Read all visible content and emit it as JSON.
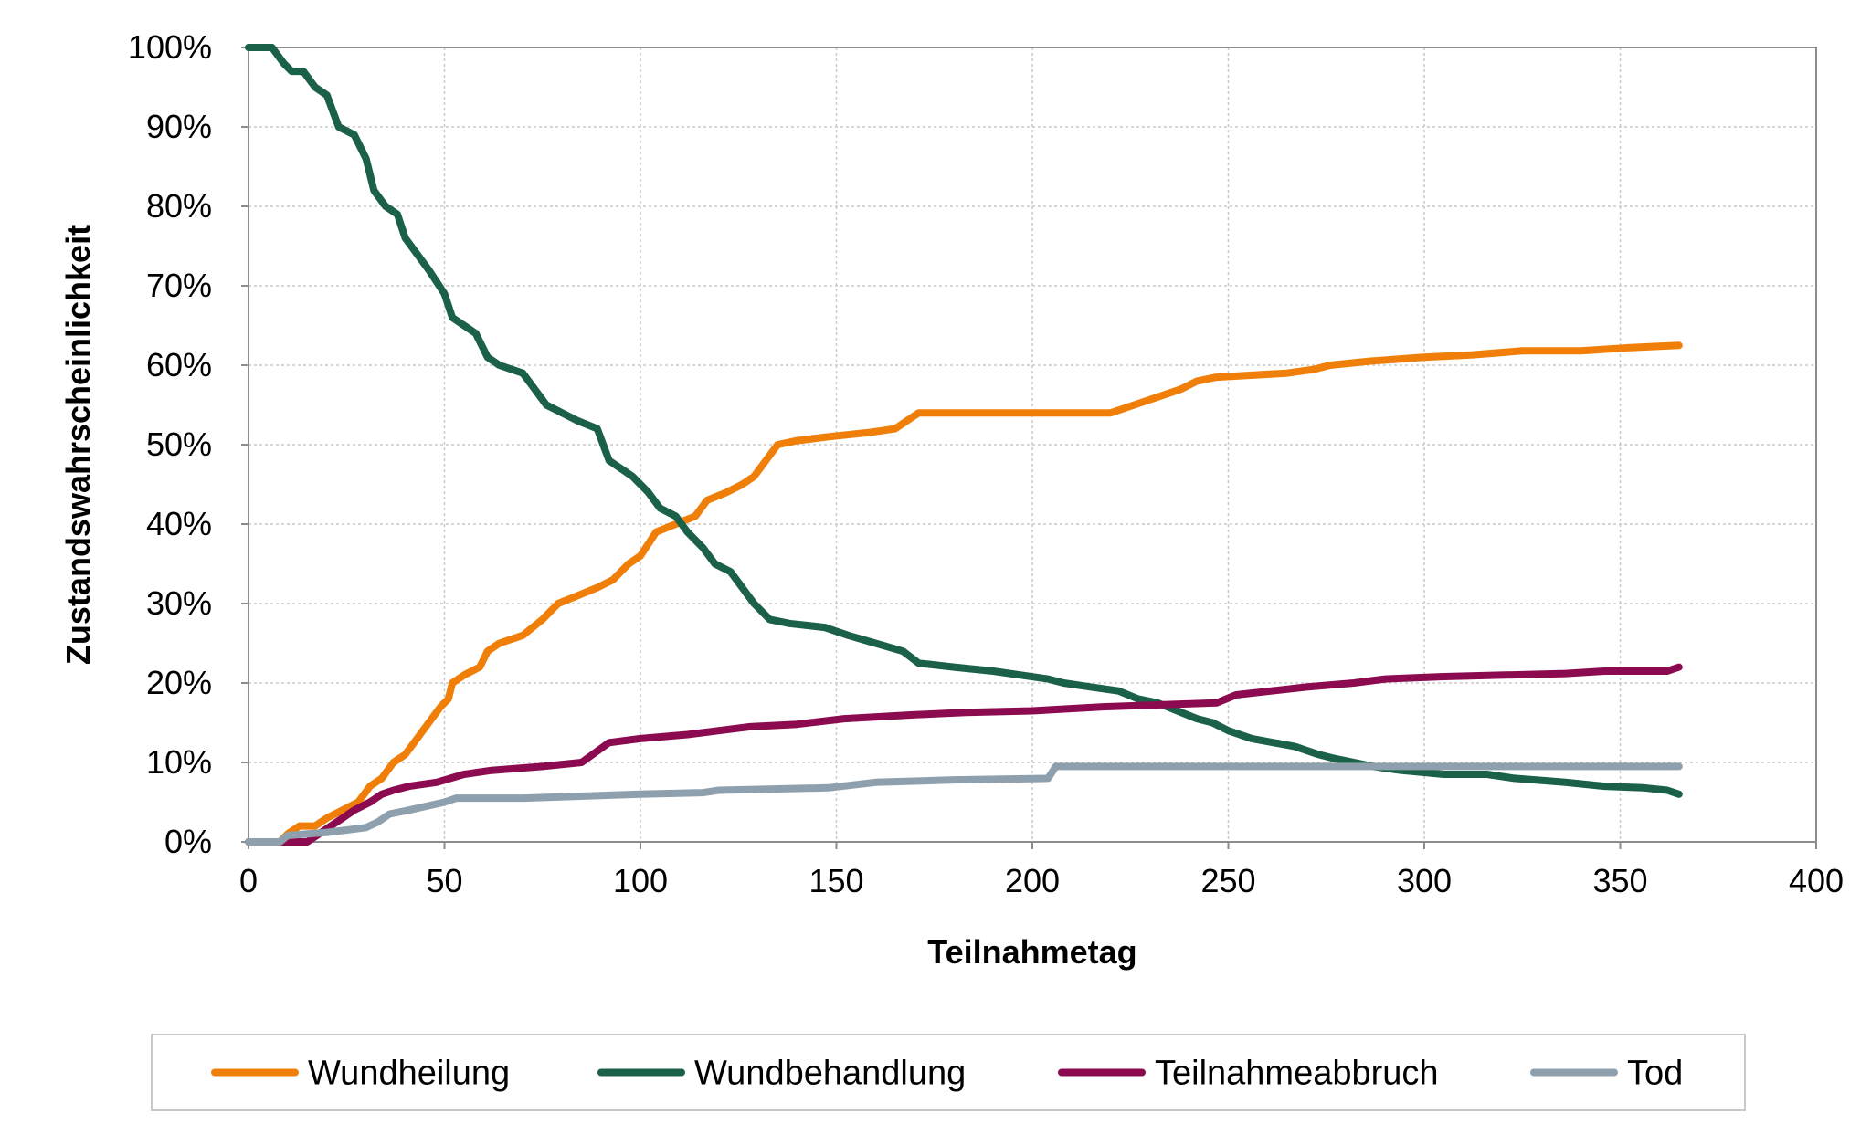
{
  "chart_data": {
    "type": "line",
    "xlabel": "Teilnahmetag",
    "ylabel": "Zustandswahrscheinlichkeit",
    "xlim": [
      0,
      400
    ],
    "ylim": [
      0,
      1
    ],
    "x_ticks": [
      {
        "value": 0,
        "label": "0"
      },
      {
        "value": 50,
        "label": "50"
      },
      {
        "value": 100,
        "label": "100"
      },
      {
        "value": 150,
        "label": "150"
      },
      {
        "value": 200,
        "label": "200"
      },
      {
        "value": 250,
        "label": "250"
      },
      {
        "value": 300,
        "label": "300"
      },
      {
        "value": 350,
        "label": "350"
      },
      {
        "value": 400,
        "label": "400"
      }
    ],
    "y_ticks": [
      {
        "value": 0.0,
        "label": "0%"
      },
      {
        "value": 0.1,
        "label": "10%"
      },
      {
        "value": 0.2,
        "label": "20%"
      },
      {
        "value": 0.3,
        "label": "30%"
      },
      {
        "value": 0.4,
        "label": "40%"
      },
      {
        "value": 0.5,
        "label": "50%"
      },
      {
        "value": 0.6,
        "label": "60%"
      },
      {
        "value": 0.7,
        "label": "70%"
      },
      {
        "value": 0.8,
        "label": "80%"
      },
      {
        "value": 0.9,
        "label": "90%"
      },
      {
        "value": 1.0,
        "label": "100%"
      }
    ],
    "grid": "dashed, both axes",
    "legend_position": "bottom",
    "series": [
      {
        "name": "Wundheilung",
        "color": "#f07f09",
        "points": [
          [
            0,
            0
          ],
          [
            8,
            0
          ],
          [
            10,
            0.01
          ],
          [
            13,
            0.02
          ],
          [
            17,
            0.02
          ],
          [
            20,
            0.03
          ],
          [
            24,
            0.04
          ],
          [
            28,
            0.05
          ],
          [
            31,
            0.07
          ],
          [
            34,
            0.08
          ],
          [
            37,
            0.1
          ],
          [
            40,
            0.11
          ],
          [
            43,
            0.13
          ],
          [
            46,
            0.15
          ],
          [
            49,
            0.17
          ],
          [
            51,
            0.18
          ],
          [
            52,
            0.2
          ],
          [
            55,
            0.21
          ],
          [
            59,
            0.22
          ],
          [
            61,
            0.24
          ],
          [
            64,
            0.25
          ],
          [
            70,
            0.26
          ],
          [
            75,
            0.28
          ],
          [
            79,
            0.3
          ],
          [
            84,
            0.31
          ],
          [
            89,
            0.32
          ],
          [
            93,
            0.33
          ],
          [
            97,
            0.35
          ],
          [
            100,
            0.36
          ],
          [
            104,
            0.39
          ],
          [
            109,
            0.4
          ],
          [
            114,
            0.41
          ],
          [
            117,
            0.43
          ],
          [
            122,
            0.44
          ],
          [
            126,
            0.45
          ],
          [
            129,
            0.46
          ],
          [
            132,
            0.48
          ],
          [
            135,
            0.5
          ],
          [
            140,
            0.505
          ],
          [
            148,
            0.51
          ],
          [
            158,
            0.515
          ],
          [
            165,
            0.52
          ],
          [
            171,
            0.54
          ],
          [
            180,
            0.54
          ],
          [
            200,
            0.54
          ],
          [
            220,
            0.54
          ],
          [
            226,
            0.55
          ],
          [
            232,
            0.56
          ],
          [
            238,
            0.57
          ],
          [
            242,
            0.58
          ],
          [
            247,
            0.585
          ],
          [
            265,
            0.59
          ],
          [
            272,
            0.595
          ],
          [
            276,
            0.6
          ],
          [
            286,
            0.605
          ],
          [
            300,
            0.61
          ],
          [
            312,
            0.613
          ],
          [
            325,
            0.618
          ],
          [
            340,
            0.618
          ],
          [
            352,
            0.622
          ],
          [
            365,
            0.625
          ]
        ]
      },
      {
        "name": "Wundbehandlung",
        "color": "#1b6049",
        "points": [
          [
            0,
            1
          ],
          [
            6,
            1
          ],
          [
            9,
            0.98
          ],
          [
            11,
            0.97
          ],
          [
            14,
            0.97
          ],
          [
            17,
            0.95
          ],
          [
            20,
            0.94
          ],
          [
            23,
            0.9
          ],
          [
            27,
            0.89
          ],
          [
            30,
            0.86
          ],
          [
            32,
            0.82
          ],
          [
            35,
            0.8
          ],
          [
            38,
            0.79
          ],
          [
            40,
            0.76
          ],
          [
            43,
            0.74
          ],
          [
            46,
            0.72
          ],
          [
            50,
            0.69
          ],
          [
            52,
            0.66
          ],
          [
            55,
            0.65
          ],
          [
            58,
            0.64
          ],
          [
            61,
            0.61
          ],
          [
            64,
            0.6
          ],
          [
            70,
            0.59
          ],
          [
            73,
            0.57
          ],
          [
            76,
            0.55
          ],
          [
            80,
            0.54
          ],
          [
            84,
            0.53
          ],
          [
            89,
            0.52
          ],
          [
            92,
            0.48
          ],
          [
            95,
            0.47
          ],
          [
            98,
            0.46
          ],
          [
            102,
            0.44
          ],
          [
            105,
            0.42
          ],
          [
            109,
            0.41
          ],
          [
            112,
            0.39
          ],
          [
            116,
            0.37
          ],
          [
            119,
            0.35
          ],
          [
            123,
            0.34
          ],
          [
            126,
            0.32
          ],
          [
            129,
            0.3
          ],
          [
            133,
            0.28
          ],
          [
            138,
            0.275
          ],
          [
            147,
            0.27
          ],
          [
            153,
            0.26
          ],
          [
            160,
            0.25
          ],
          [
            167,
            0.24
          ],
          [
            171,
            0.225
          ],
          [
            180,
            0.22
          ],
          [
            190,
            0.215
          ],
          [
            204,
            0.205
          ],
          [
            208,
            0.2
          ],
          [
            215,
            0.195
          ],
          [
            222,
            0.19
          ],
          [
            227,
            0.18
          ],
          [
            232,
            0.175
          ],
          [
            237,
            0.165
          ],
          [
            242,
            0.155
          ],
          [
            246,
            0.15
          ],
          [
            250,
            0.14
          ],
          [
            256,
            0.13
          ],
          [
            267,
            0.12
          ],
          [
            273,
            0.11
          ],
          [
            277,
            0.105
          ],
          [
            287,
            0.095
          ],
          [
            294,
            0.09
          ],
          [
            305,
            0.085
          ],
          [
            316,
            0.085
          ],
          [
            323,
            0.08
          ],
          [
            336,
            0.075
          ],
          [
            346,
            0.07
          ],
          [
            356,
            0.068
          ],
          [
            362,
            0.065
          ],
          [
            365,
            0.06
          ]
        ]
      },
      {
        "name": "Teilnahmeabbruch",
        "color": "#8c0a4f",
        "points": [
          [
            0,
            0
          ],
          [
            15,
            0
          ],
          [
            18,
            0.01
          ],
          [
            21,
            0.02
          ],
          [
            24,
            0.03
          ],
          [
            27,
            0.04
          ],
          [
            31,
            0.05
          ],
          [
            34,
            0.06
          ],
          [
            37,
            0.065
          ],
          [
            41,
            0.07
          ],
          [
            48,
            0.075
          ],
          [
            55,
            0.085
          ],
          [
            62,
            0.09
          ],
          [
            75,
            0.095
          ],
          [
            85,
            0.1
          ],
          [
            92,
            0.125
          ],
          [
            100,
            0.13
          ],
          [
            112,
            0.135
          ],
          [
            120,
            0.14
          ],
          [
            128,
            0.145
          ],
          [
            140,
            0.148
          ],
          [
            152,
            0.155
          ],
          [
            170,
            0.16
          ],
          [
            183,
            0.163
          ],
          [
            200,
            0.165
          ],
          [
            218,
            0.17
          ],
          [
            247,
            0.175
          ],
          [
            252,
            0.185
          ],
          [
            270,
            0.195
          ],
          [
            282,
            0.2
          ],
          [
            290,
            0.205
          ],
          [
            305,
            0.208
          ],
          [
            336,
            0.212
          ],
          [
            346,
            0.215
          ],
          [
            362,
            0.215
          ],
          [
            365,
            0.22
          ]
        ]
      },
      {
        "name": "Tod",
        "color": "#8ea0ad",
        "points": [
          [
            0,
            0
          ],
          [
            8,
            0
          ],
          [
            10,
            0.008
          ],
          [
            20,
            0.012
          ],
          [
            25,
            0.015
          ],
          [
            30,
            0.018
          ],
          [
            33,
            0.025
          ],
          [
            36,
            0.035
          ],
          [
            41,
            0.04
          ],
          [
            50,
            0.05
          ],
          [
            53,
            0.055
          ],
          [
            70,
            0.055
          ],
          [
            88,
            0.058
          ],
          [
            100,
            0.06
          ],
          [
            116,
            0.062
          ],
          [
            120,
            0.065
          ],
          [
            148,
            0.068
          ],
          [
            160,
            0.075
          ],
          [
            180,
            0.078
          ],
          [
            204,
            0.08
          ],
          [
            206,
            0.095
          ],
          [
            250,
            0.095
          ],
          [
            300,
            0.095
          ],
          [
            365,
            0.095
          ]
        ]
      }
    ]
  }
}
